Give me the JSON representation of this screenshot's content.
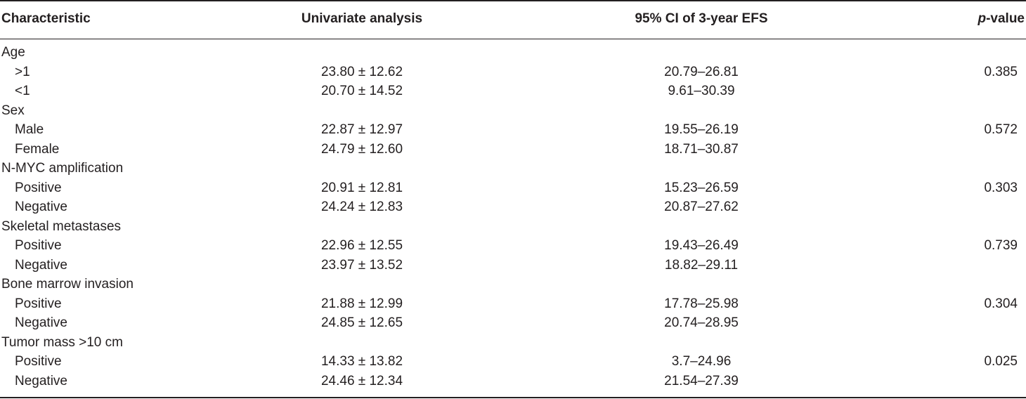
{
  "header": {
    "characteristic": "Characteristic",
    "univariate": "Univariate analysis",
    "ci": "95% CI of 3-year EFS",
    "p_italic": "p",
    "p_rest": "-value"
  },
  "rows": [
    {
      "char": "Age",
      "uni": "",
      "ci": "",
      "p": ""
    },
    {
      "char": ">1",
      "uni": "23.80 ± 12.62",
      "ci": "20.79–26.81",
      "p": "0.385"
    },
    {
      "char": "<1",
      "uni": "20.70 ± 14.52",
      "ci": "9.61–30.39",
      "p": ""
    },
    {
      "char": "Sex",
      "uni": "",
      "ci": "",
      "p": ""
    },
    {
      "char": "Male",
      "uni": "22.87 ± 12.97",
      "ci": "19.55–26.19",
      "p": "0.572"
    },
    {
      "char": "Female",
      "uni": "24.79 ± 12.60",
      "ci": "18.71–30.87",
      "p": ""
    },
    {
      "char": "N-MYC amplification",
      "uni": "",
      "ci": "",
      "p": ""
    },
    {
      "char": "Positive",
      "uni": "20.91 ± 12.81",
      "ci": "15.23–26.59",
      "p": "0.303"
    },
    {
      "char": "Negative",
      "uni": "24.24 ± 12.83",
      "ci": "20.87–27.62",
      "p": ""
    },
    {
      "char": "Skeletal metastases",
      "uni": "",
      "ci": "",
      "p": ""
    },
    {
      "char": "Positive",
      "uni": "22.96 ± 12.55",
      "ci": "19.43–26.49",
      "p": "0.739"
    },
    {
      "char": "Negative",
      "uni": "23.97 ± 13.52",
      "ci": "18.82–29.11",
      "p": ""
    },
    {
      "char": "Bone marrow invasion",
      "uni": "",
      "ci": "",
      "p": ""
    },
    {
      "char": "Positive",
      "uni": "21.88 ± 12.99",
      "ci": "17.78–25.98",
      "p": "0.304"
    },
    {
      "char": "Negative",
      "uni": "24.85 ± 12.65",
      "ci": "20.74–28.95",
      "p": ""
    },
    {
      "char": "Tumor mass >10 cm",
      "uni": "",
      "ci": "",
      "p": ""
    },
    {
      "char": "Positive",
      "uni": "14.33 ± 13.82",
      "ci": "3.7–24.96",
      "p": "0.025"
    },
    {
      "char": "Negative",
      "uni": "24.46 ± 12.34",
      "ci": "21.54–27.39",
      "p": ""
    }
  ]
}
